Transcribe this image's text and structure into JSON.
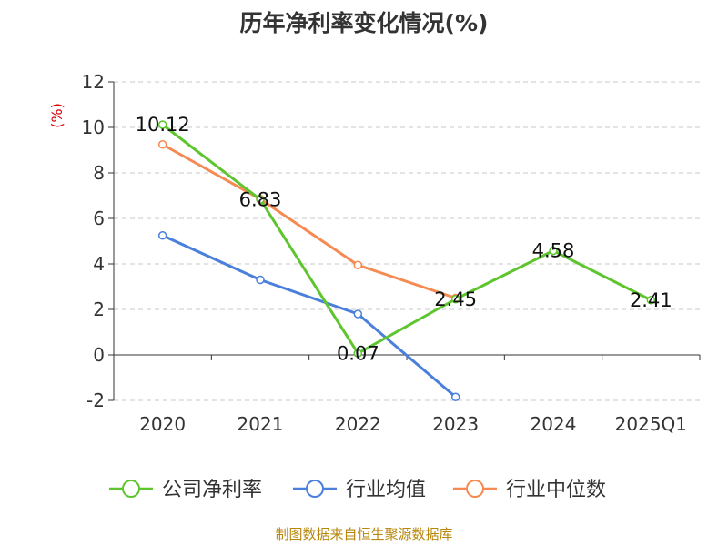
{
  "title": "历年净利率变化情况(%)",
  "footer": "制图数据来自恒生聚源数据库",
  "chart_data": {
    "type": "line",
    "title": "历年净利率变化情况(%)",
    "ylabel": "(%)",
    "ylim": [
      -2,
      12
    ],
    "yticks": [
      -2,
      0,
      2,
      4,
      6,
      8,
      10,
      12
    ],
    "grid": true,
    "legend_position": "bottom",
    "categories": [
      "2020",
      "2021",
      "2022",
      "2023",
      "2024",
      "2025Q1"
    ],
    "series": [
      {
        "name": "公司净利率",
        "color": "#5ec52e",
        "values": [
          10.12,
          6.83,
          0.07,
          2.45,
          4.58,
          2.41
        ],
        "labels": [
          "10.12",
          "6.83",
          "0.07",
          "2.45",
          "4.58",
          "2.41"
        ]
      },
      {
        "name": "行业均值",
        "color": "#4a7fdb",
        "values": [
          5.25,
          3.3,
          1.8,
          -1.85,
          null,
          null
        ]
      },
      {
        "name": "行业中位数",
        "color": "#f58a52",
        "values": [
          9.25,
          6.85,
          3.95,
          2.5,
          null,
          null
        ]
      }
    ]
  }
}
